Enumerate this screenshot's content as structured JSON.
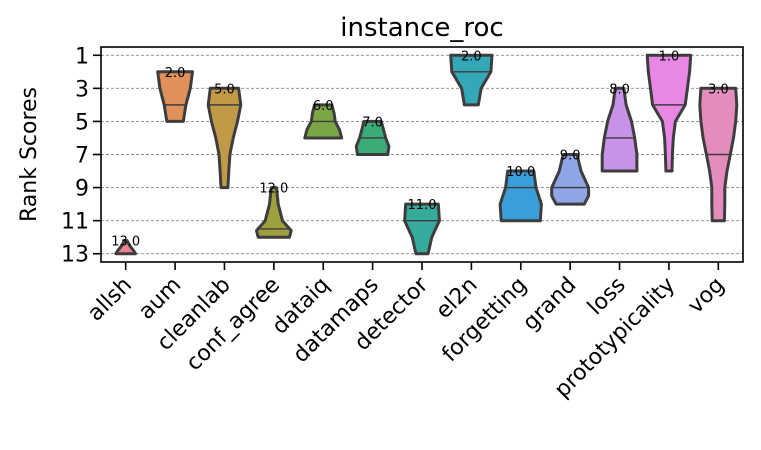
{
  "chart_data": {
    "type": "violin",
    "title": "instance_roc",
    "xlabel": "",
    "ylabel": "Rank Scores",
    "ylim": [
      13.5,
      0.5
    ],
    "yticks": [
      1,
      3,
      5,
      7,
      9,
      11,
      13
    ],
    "grid": "horizontal-dashed",
    "categories": [
      "allsh",
      "aum",
      "cleanlab",
      "conf_agree",
      "dataiq",
      "datamaps",
      "detector",
      "el2n",
      "forgetting",
      "grand",
      "loss",
      "prototypicality",
      "vog"
    ],
    "series": [
      {
        "name": "allsh",
        "min": 12.2,
        "max": 13.0,
        "median": 13.0,
        "label": "13.0",
        "shape": [
          [
            12.2,
            0.06
          ],
          [
            12.5,
            0.18
          ],
          [
            12.8,
            0.36
          ],
          [
            13.0,
            0.45
          ]
        ],
        "color": "#e8828f"
      },
      {
        "name": "aum",
        "min": 2.0,
        "max": 5.0,
        "median": 4.0,
        "label": "2.0",
        "shape": [
          [
            2.0,
            0.8
          ],
          [
            3.0,
            0.7
          ],
          [
            4.0,
            0.5
          ],
          [
            5.0,
            0.38
          ]
        ],
        "color": "#e0915a"
      },
      {
        "name": "cleanlab",
        "min": 3.0,
        "max": 9.0,
        "median": 4.0,
        "label": "5.0",
        "shape": [
          [
            3.0,
            0.65
          ],
          [
            4.0,
            0.75
          ],
          [
            5.0,
            0.6
          ],
          [
            6.0,
            0.4
          ],
          [
            7.0,
            0.25
          ],
          [
            8.0,
            0.2
          ],
          [
            9.0,
            0.16
          ]
        ],
        "color": "#c19a47"
      },
      {
        "name": "conf_agree",
        "min": 9.0,
        "max": 12.0,
        "median": 11.5,
        "label": "12.0",
        "shape": [
          [
            9.0,
            0.12
          ],
          [
            10.0,
            0.2
          ],
          [
            11.0,
            0.4
          ],
          [
            11.6,
            0.8
          ],
          [
            12.0,
            0.72
          ]
        ],
        "color": "#9e9f3f"
      },
      {
        "name": "dataiq",
        "min": 4.0,
        "max": 6.0,
        "median": 5.0,
        "label": "6.0",
        "shape": [
          [
            4.0,
            0.4
          ],
          [
            4.5,
            0.5
          ],
          [
            5.0,
            0.55
          ],
          [
            5.5,
            0.75
          ],
          [
            6.0,
            0.85
          ]
        ],
        "color": "#7ba646"
      },
      {
        "name": "datamaps",
        "min": 5.0,
        "max": 7.0,
        "median": 6.0,
        "label": "7.0",
        "shape": [
          [
            5.0,
            0.4
          ],
          [
            5.5,
            0.5
          ],
          [
            6.0,
            0.6
          ],
          [
            6.5,
            0.75
          ],
          [
            7.0,
            0.7
          ]
        ],
        "color": "#3dab76"
      },
      {
        "name": "detector",
        "min": 10.0,
        "max": 13.0,
        "median": 11.0,
        "label": "11.0",
        "shape": [
          [
            10.0,
            0.75
          ],
          [
            11.0,
            0.8
          ],
          [
            12.0,
            0.45
          ],
          [
            13.0,
            0.28
          ]
        ],
        "color": "#36ab9c"
      },
      {
        "name": "el2n",
        "min": 1.0,
        "max": 4.0,
        "median": 2.0,
        "label": "2.0",
        "shape": [
          [
            1.0,
            0.95
          ],
          [
            2.0,
            0.9
          ],
          [
            3.0,
            0.45
          ],
          [
            4.0,
            0.32
          ]
        ],
        "color": "#35a8b8"
      },
      {
        "name": "forgetting",
        "min": 8.0,
        "max": 11.0,
        "median": 9.0,
        "label": "10.0",
        "shape": [
          [
            8.0,
            0.6
          ],
          [
            9.0,
            0.7
          ],
          [
            10.0,
            0.95
          ],
          [
            11.0,
            0.9
          ]
        ],
        "color": "#3a9fd8"
      },
      {
        "name": "grand",
        "min": 7.0,
        "max": 10.0,
        "median": 9.0,
        "label": "9.0",
        "shape": [
          [
            7.0,
            0.32
          ],
          [
            8.0,
            0.5
          ],
          [
            9.0,
            0.85
          ],
          [
            9.5,
            0.85
          ],
          [
            10.0,
            0.65
          ]
        ],
        "color": "#8fa5e6"
      },
      {
        "name": "loss",
        "min": 3.0,
        "max": 8.0,
        "median": 6.0,
        "label": "8.0",
        "shape": [
          [
            3.0,
            0.2
          ],
          [
            4.0,
            0.3
          ],
          [
            5.0,
            0.55
          ],
          [
            6.0,
            0.7
          ],
          [
            7.0,
            0.8
          ],
          [
            8.0,
            0.8
          ]
        ],
        "color": "#c792e7"
      },
      {
        "name": "prototypicality",
        "min": 1.0,
        "max": 8.0,
        "median": 4.0,
        "label": "1.0",
        "shape": [
          [
            1.0,
            1.0
          ],
          [
            2.0,
            0.95
          ],
          [
            3.0,
            0.85
          ],
          [
            4.0,
            0.75
          ],
          [
            5.0,
            0.3
          ],
          [
            6.0,
            0.2
          ],
          [
            7.0,
            0.16
          ],
          [
            8.0,
            0.14
          ]
        ],
        "color": "#e887e4"
      },
      {
        "name": "vog",
        "min": 3.0,
        "max": 11.0,
        "median": 7.0,
        "label": "3.0",
        "shape": [
          [
            3.0,
            0.8
          ],
          [
            4.0,
            0.85
          ],
          [
            5.0,
            0.8
          ],
          [
            6.0,
            0.7
          ],
          [
            7.0,
            0.55
          ],
          [
            8.0,
            0.4
          ],
          [
            9.0,
            0.3
          ],
          [
            10.0,
            0.3
          ],
          [
            11.0,
            0.28
          ]
        ],
        "color": "#e48cbc"
      }
    ]
  }
}
